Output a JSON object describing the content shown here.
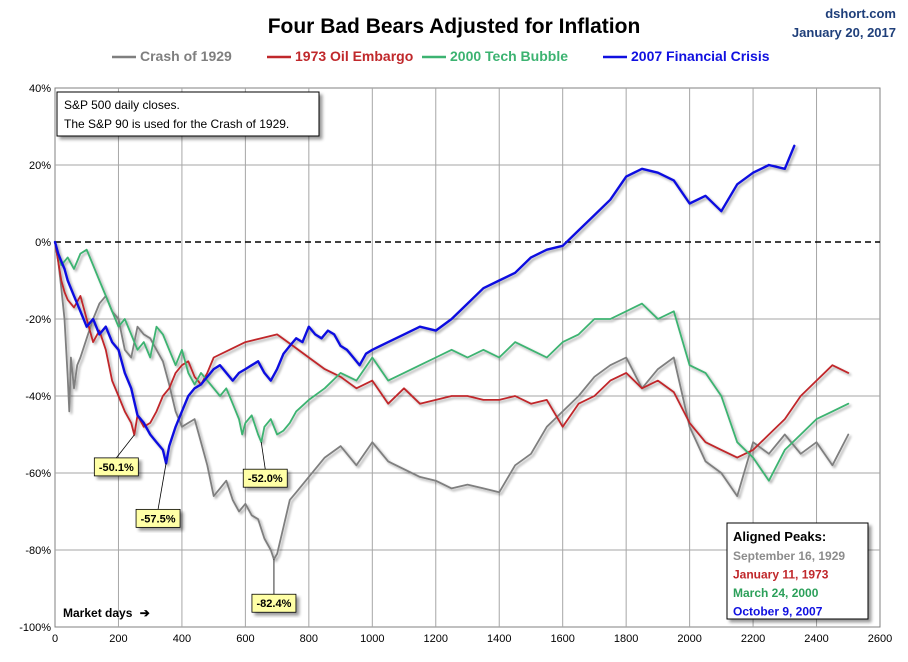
{
  "source": {
    "site": "dshort.com",
    "date": "January 20, 2017"
  },
  "chart_data": {
    "type": "line",
    "title": "Four Bad Bears Adjusted for Inflation",
    "xlabel": "Market days",
    "xlabel_arrow": "➔",
    "ylabel": "",
    "xlim": [
      0,
      2600
    ],
    "ylim": [
      -100,
      40
    ],
    "x_ticks": [
      0,
      200,
      400,
      600,
      800,
      1000,
      1200,
      1400,
      1600,
      1800,
      2000,
      2200,
      2400,
      2600
    ],
    "y_ticks": [
      40,
      20,
      0,
      -20,
      -40,
      -60,
      -80,
      -100
    ],
    "y_tick_labels": [
      "40%",
      "20%",
      "0%",
      "-20%",
      "-40%",
      "-60%",
      "-80%",
      "-100%"
    ],
    "grid": true,
    "legend_position": "top",
    "note": [
      "S&P 500 daily closes.",
      "The S&P 90 is used for the Crash of 1929."
    ],
    "series": [
      {
        "name": "Crash of 1929",
        "color": "#7f7f7f",
        "x": [
          0,
          10,
          20,
          30,
          40,
          45,
          50,
          60,
          70,
          80,
          100,
          120,
          140,
          160,
          180,
          200,
          220,
          240,
          260,
          280,
          300,
          320,
          340,
          360,
          380,
          400,
          420,
          440,
          460,
          480,
          500,
          520,
          540,
          560,
          580,
          600,
          620,
          640,
          660,
          680,
          690,
          700,
          720,
          740,
          760,
          800,
          850,
          900,
          950,
          1000,
          1050,
          1100,
          1150,
          1200,
          1250,
          1300,
          1350,
          1400,
          1450,
          1500,
          1550,
          1600,
          1650,
          1700,
          1750,
          1800,
          1850,
          1900,
          1950,
          2000,
          2050,
          2100,
          2150,
          2200,
          2250,
          2300,
          2350,
          2400,
          2450,
          2500
        ],
        "y": [
          0,
          -5,
          -12,
          -20,
          -35,
          -44,
          -30,
          -38,
          -32,
          -30,
          -25,
          -20,
          -16,
          -14,
          -18,
          -20,
          -28,
          -30,
          -22,
          -24,
          -25,
          -28,
          -31,
          -37,
          -44,
          -48,
          -47,
          -46,
          -52,
          -58,
          -66,
          -64,
          -62,
          -67,
          -70,
          -68,
          -71,
          -72,
          -77,
          -80,
          -82.4,
          -81,
          -74,
          -67,
          -65,
          -61,
          -56,
          -53,
          -58,
          -52,
          -57,
          -59,
          -61,
          -62,
          -64,
          -63,
          -64,
          -65,
          -58,
          -55,
          -48,
          -44,
          -40,
          -35,
          -32,
          -30,
          -38,
          -33,
          -30,
          -48,
          -57,
          -60,
          -66,
          -52,
          -55,
          -50,
          -55,
          -52,
          -58,
          -50
        ]
      },
      {
        "name": "1973 Oil Embargo",
        "color": "#c0282b",
        "x": [
          0,
          10,
          20,
          30,
          40,
          60,
          80,
          100,
          120,
          140,
          160,
          180,
          200,
          220,
          240,
          250,
          260,
          280,
          300,
          320,
          340,
          360,
          380,
          400,
          420,
          440,
          460,
          480,
          500,
          550,
          600,
          650,
          700,
          750,
          800,
          850,
          900,
          950,
          1000,
          1050,
          1100,
          1150,
          1200,
          1250,
          1300,
          1350,
          1400,
          1450,
          1500,
          1550,
          1600,
          1650,
          1700,
          1750,
          1800,
          1850,
          1900,
          1950,
          2000,
          2050,
          2100,
          2150,
          2200,
          2250,
          2300,
          2350,
          2400,
          2450,
          2500
        ],
        "y": [
          0,
          -5,
          -10,
          -13,
          -15,
          -17,
          -14,
          -20,
          -26,
          -23,
          -28,
          -36,
          -40,
          -44,
          -47,
          -50.1,
          -45,
          -48,
          -47,
          -44,
          -40,
          -38,
          -34,
          -32,
          -31,
          -35,
          -37,
          -34,
          -30,
          -28,
          -26,
          -25,
          -24,
          -27,
          -30,
          -33,
          -35,
          -38,
          -36,
          -42,
          -38,
          -42,
          -41,
          -40,
          -40,
          -41,
          -41,
          -40,
          -42,
          -41,
          -48,
          -42,
          -40,
          -36,
          -34,
          -38,
          -36,
          -39,
          -47,
          -52,
          -54,
          -56,
          -54,
          -50,
          -46,
          -40,
          -36,
          -32,
          -34
        ]
      },
      {
        "name": "2000 Tech Bubble",
        "color": "#3cb371",
        "x": [
          0,
          10,
          20,
          30,
          40,
          60,
          80,
          100,
          120,
          140,
          160,
          180,
          200,
          220,
          240,
          260,
          280,
          300,
          320,
          340,
          360,
          380,
          400,
          420,
          440,
          460,
          480,
          500,
          520,
          540,
          560,
          580,
          590,
          600,
          620,
          640,
          650,
          660,
          680,
          700,
          720,
          740,
          760,
          800,
          850,
          900,
          950,
          1000,
          1050,
          1100,
          1150,
          1200,
          1250,
          1300,
          1350,
          1400,
          1450,
          1500,
          1550,
          1600,
          1650,
          1700,
          1750,
          1800,
          1850,
          1900,
          1950,
          2000,
          2050,
          2100,
          2150,
          2200,
          2250,
          2300,
          2350,
          2400,
          2450,
          2500
        ],
        "y": [
          0,
          -3,
          -6,
          -5,
          -4,
          -7,
          -3,
          -2,
          -6,
          -10,
          -14,
          -18,
          -22,
          -20,
          -24,
          -28,
          -26,
          -30,
          -22,
          -24,
          -28,
          -32,
          -28,
          -34,
          -37,
          -34,
          -36,
          -38,
          -40,
          -38,
          -42,
          -46,
          -50,
          -47,
          -45,
          -50,
          -52,
          -48,
          -46,
          -50,
          -49,
          -47,
          -44,
          -41,
          -38,
          -34,
          -36,
          -30,
          -36,
          -34,
          -32,
          -30,
          -28,
          -30,
          -28,
          -30,
          -26,
          -28,
          -30,
          -26,
          -24,
          -20,
          -20,
          -18,
          -16,
          -20,
          -18,
          -32,
          -34,
          -40,
          -52,
          -56,
          -62,
          -54,
          -50,
          -46,
          -44,
          -42
        ]
      },
      {
        "name": "2007 Financial Crisis",
        "color": "#1010e0",
        "x": [
          0,
          10,
          20,
          30,
          40,
          60,
          80,
          100,
          120,
          140,
          160,
          180,
          200,
          220,
          240,
          260,
          280,
          300,
          320,
          340,
          350,
          360,
          380,
          400,
          420,
          440,
          460,
          480,
          500,
          520,
          540,
          560,
          580,
          600,
          620,
          640,
          660,
          680,
          700,
          720,
          740,
          760,
          780,
          800,
          820,
          840,
          860,
          880,
          900,
          920,
          940,
          960,
          980,
          1000,
          1050,
          1100,
          1150,
          1200,
          1250,
          1300,
          1350,
          1400,
          1450,
          1500,
          1550,
          1600,
          1650,
          1700,
          1750,
          1800,
          1850,
          1900,
          1950,
          2000,
          2050,
          2100,
          2150,
          2200,
          2250,
          2300,
          2330
        ],
        "y": [
          0,
          -3,
          -5,
          -7,
          -10,
          -14,
          -18,
          -22,
          -20,
          -24,
          -22,
          -26,
          -28,
          -34,
          -38,
          -45,
          -47,
          -50,
          -52,
          -54,
          -57.5,
          -53,
          -48,
          -44,
          -40,
          -38,
          -37,
          -35,
          -33,
          -32,
          -34,
          -36,
          -34,
          -33,
          -32,
          -31,
          -34,
          -36,
          -33,
          -29,
          -27,
          -25,
          -26,
          -22,
          -24,
          -25,
          -23,
          -24,
          -27,
          -28,
          -30,
          -32,
          -29,
          -28,
          -26,
          -24,
          -22,
          -23,
          -20,
          -16,
          -12,
          -10,
          -8,
          -4,
          -2,
          -1,
          3,
          7,
          11,
          17,
          19,
          18,
          16,
          10,
          12,
          8,
          15,
          18,
          20,
          19,
          25
        ]
      }
    ],
    "callouts": [
      {
        "label": "-50.1%",
        "series": "1973 Oil Embargo",
        "x": 250,
        "y": -50.1
      },
      {
        "label": "-57.5%",
        "series": "2007 Financial Crisis",
        "x": 350,
        "y": -57.5
      },
      {
        "label": "-52.0%",
        "series": "2000 Tech Bubble",
        "x": 650,
        "y": -52.0
      },
      {
        "label": "-82.4%",
        "series": "Crash of 1929",
        "x": 690,
        "y": -82.4
      }
    ],
    "aligned_peaks": {
      "title": "Aligned Peaks:",
      "items": [
        {
          "label": "September 16, 1929",
          "color": "#8c8c8c"
        },
        {
          "label": "January 11, 1973",
          "color": "#c0282b"
        },
        {
          "label": "March 24, 2000",
          "color": "#2ca05a"
        },
        {
          "label": "October 9, 2007",
          "color": "#1010e0"
        }
      ]
    }
  }
}
